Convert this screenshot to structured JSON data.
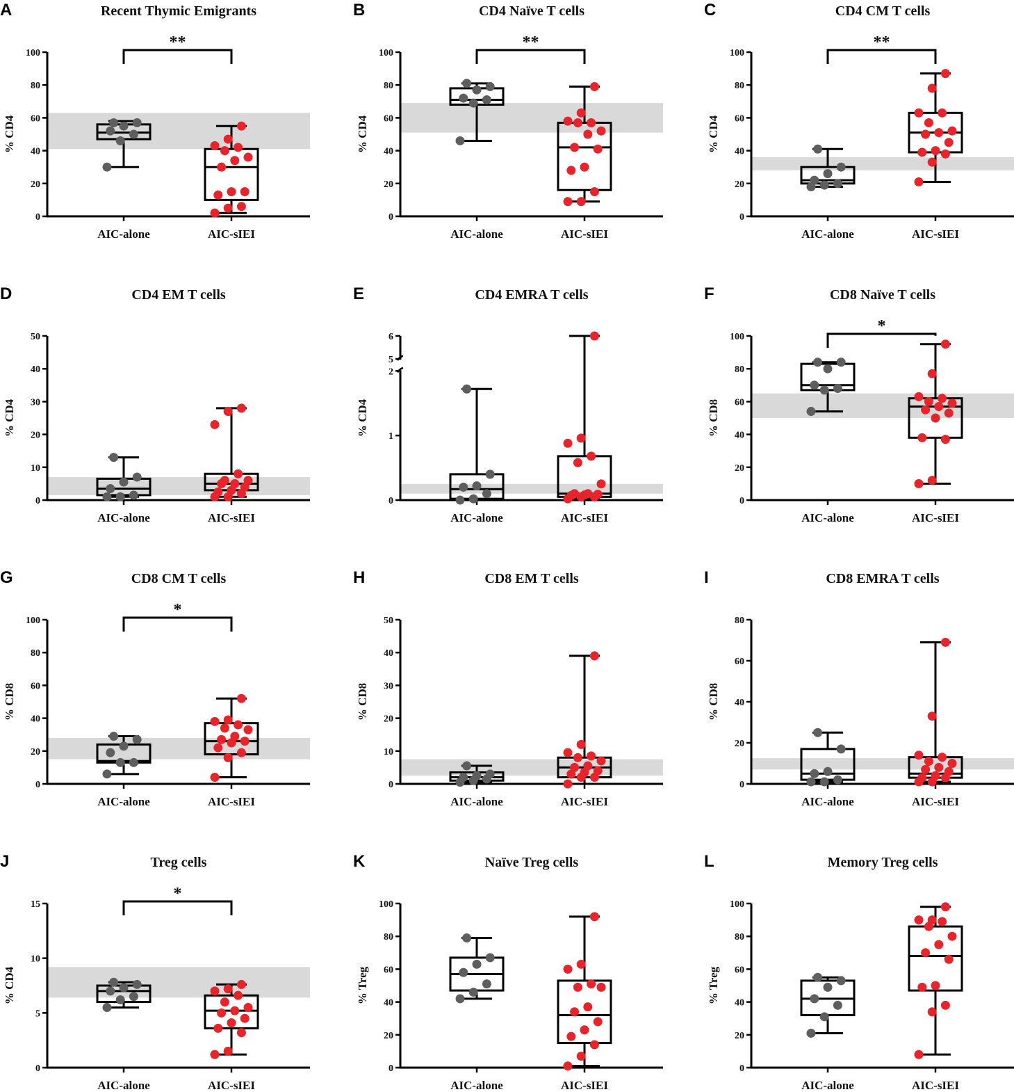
{
  "figure": {
    "categories": [
      "AIC-alone",
      "AIC-sIEI"
    ],
    "colors": {
      "alone": "#5e5e5e",
      "siei": "#e8232a",
      "reference_band": "#d9d9d9",
      "box": "#000000"
    }
  },
  "chart_data": [
    {
      "letter": "A",
      "type": "box",
      "title": "Recent Thymic Emigrants",
      "ylabel": "% CD4",
      "ylim": [
        0,
        100
      ],
      "yticks": [
        0,
        20,
        40,
        60,
        80,
        100
      ],
      "yticklabels": [
        "0",
        "20",
        "40",
        "60",
        "80",
        "100"
      ],
      "reference_band": [
        41,
        63
      ],
      "significance": "**",
      "groups": [
        {
          "name": "AIC-alone",
          "color": "#5e5e5e",
          "min": 30,
          "q1": 47,
          "median": 51,
          "q3": 56,
          "max": 58,
          "points": [
            30,
            46,
            50,
            52,
            55,
            57,
            57
          ]
        },
        {
          "name": "AIC-sIEI",
          "color": "#e8232a",
          "min": 2,
          "q1": 10,
          "median": 30,
          "q3": 41,
          "max": 55,
          "points": [
            2,
            5,
            6,
            13,
            15,
            15,
            30,
            34,
            36,
            40,
            42,
            43,
            47,
            55
          ]
        }
      ]
    },
    {
      "letter": "B",
      "type": "box",
      "title": "CD4 Naïve T cells",
      "ylabel": "% CD4",
      "ylim": [
        0,
        100
      ],
      "yticks": [
        0,
        20,
        40,
        60,
        80,
        100
      ],
      "yticklabels": [
        "0",
        "20",
        "40",
        "60",
        "80",
        "100"
      ],
      "reference_band": [
        51,
        69
      ],
      "significance": "**",
      "groups": [
        {
          "name": "AIC-alone",
          "color": "#5e5e5e",
          "min": 46,
          "q1": 68,
          "median": 71,
          "q3": 78,
          "max": 81,
          "points": [
            46,
            69,
            71,
            72,
            77,
            79,
            81
          ]
        },
        {
          "name": "AIC-sIEI",
          "color": "#e8232a",
          "min": 9,
          "q1": 16,
          "median": 42,
          "q3": 57,
          "max": 79,
          "points": [
            9,
            9,
            15,
            28,
            30,
            41,
            42,
            50,
            52,
            57,
            57,
            58,
            63,
            79
          ]
        }
      ]
    },
    {
      "letter": "C",
      "type": "box",
      "title": "CD4 CM T cells",
      "ylabel": "% CD4",
      "ylim": [
        0,
        100
      ],
      "yticks": [
        0,
        20,
        40,
        60,
        80,
        100
      ],
      "yticklabels": [
        "0",
        "20",
        "40",
        "60",
        "80",
        "100"
      ],
      "reference_band": [
        28,
        36
      ],
      "significance": "**",
      "groups": [
        {
          "name": "AIC-alone",
          "color": "#5e5e5e",
          "min": 18,
          "q1": 20,
          "median": 22,
          "q3": 30,
          "max": 41,
          "points": [
            18,
            19,
            20,
            22,
            26,
            30,
            41
          ]
        },
        {
          "name": "AIC-sIEI",
          "color": "#e8232a",
          "min": 21,
          "q1": 39,
          "median": 51,
          "q3": 63,
          "max": 87,
          "points": [
            21,
            33,
            38,
            39,
            40,
            45,
            50,
            51,
            52,
            57,
            63,
            63,
            78,
            87
          ]
        }
      ]
    },
    {
      "letter": "D",
      "type": "box",
      "title": "CD4 EM T cells",
      "ylabel": "% CD4",
      "ylim": [
        0,
        50
      ],
      "yticks": [
        0,
        10,
        20,
        30,
        40,
        50
      ],
      "yticklabels": [
        "0",
        "10",
        "20",
        "30",
        "40",
        "50"
      ],
      "reference_band": [
        1.5,
        7
      ],
      "significance": "",
      "groups": [
        {
          "name": "AIC-alone",
          "color": "#5e5e5e",
          "min": 1,
          "q1": 1.5,
          "median": 3.5,
          "q3": 6.5,
          "max": 13,
          "points": [
            1,
            1,
            1.5,
            3.5,
            5.5,
            7,
            13
          ]
        },
        {
          "name": "AIC-sIEI",
          "color": "#e8232a",
          "min": 1,
          "q1": 3,
          "median": 5,
          "q3": 8,
          "max": 28,
          "points": [
            1,
            1,
            2,
            2.5,
            3,
            4,
            5,
            5,
            6,
            6,
            8,
            23,
            27,
            28
          ]
        }
      ]
    },
    {
      "letter": "E",
      "type": "box",
      "title": "CD4 EMRA T cells",
      "ylabel": "% CD4",
      "ylim": [
        0,
        6
      ],
      "axis_break": true,
      "yticks": [
        0,
        1,
        2,
        5,
        6
      ],
      "yticklabels": [
        "0",
        "1",
        "2",
        "5",
        "6"
      ],
      "reference_band": [
        0.1,
        0.25
      ],
      "significance": "",
      "groups": [
        {
          "name": "AIC-alone",
          "color": "#5e5e5e",
          "min": 0,
          "q1": 0.02,
          "median": 0.17,
          "q3": 0.4,
          "max": 1.72,
          "points": [
            0,
            0.02,
            0.1,
            0.2,
            0.22,
            0.4,
            1.72
          ]
        },
        {
          "name": "AIC-sIEI",
          "color": "#e8232a",
          "min": 0.02,
          "q1": 0.05,
          "median": 0.1,
          "q3": 0.68,
          "max": 6,
          "points": [
            0.02,
            0.05,
            0.05,
            0.07,
            0.08,
            0.09,
            0.1,
            0.1,
            0.25,
            0.58,
            0.68,
            0.88,
            0.96,
            6
          ]
        }
      ]
    },
    {
      "letter": "F",
      "type": "box",
      "title": "CD8 Naïve T cells",
      "ylabel": "% CD8",
      "ylim": [
        0,
        100
      ],
      "yticks": [
        0,
        20,
        40,
        60,
        80,
        100
      ],
      "yticklabels": [
        "0",
        "20",
        "40",
        "60",
        "80",
        "100"
      ],
      "reference_band": [
        50,
        65
      ],
      "significance": "*",
      "groups": [
        {
          "name": "AIC-alone",
          "color": "#5e5e5e",
          "min": 54,
          "q1": 67,
          "median": 70,
          "q3": 83,
          "max": 84,
          "points": [
            54,
            67,
            68,
            70,
            80,
            84,
            84
          ]
        },
        {
          "name": "AIC-sIEI",
          "color": "#e8232a",
          "min": 10,
          "q1": 38,
          "median": 57,
          "q3": 62,
          "max": 95,
          "points": [
            10,
            12,
            37,
            38,
            50,
            53,
            55,
            57,
            59,
            60,
            62,
            63,
            77,
            95
          ]
        }
      ]
    },
    {
      "letter": "G",
      "type": "box",
      "title": "CD8 CM T cells",
      "ylabel": "% CD8",
      "ylim": [
        0,
        100
      ],
      "yticks": [
        0,
        20,
        40,
        60,
        80,
        100
      ],
      "yticklabels": [
        "0",
        "20",
        "40",
        "60",
        "80",
        "100"
      ],
      "reference_band": [
        15,
        28
      ],
      "significance": "*",
      "groups": [
        {
          "name": "AIC-alone",
          "color": "#5e5e5e",
          "min": 6,
          "q1": 13,
          "median": 14,
          "q3": 24,
          "max": 29,
          "points": [
            6,
            13,
            13,
            19,
            23,
            27,
            29
          ]
        },
        {
          "name": "AIC-sIEI",
          "color": "#e8232a",
          "min": 4,
          "q1": 18,
          "median": 26,
          "q3": 37,
          "max": 52,
          "points": [
            4,
            16,
            19,
            22,
            25,
            26,
            27,
            29,
            33,
            34,
            36,
            38,
            39,
            52
          ]
        }
      ]
    },
    {
      "letter": "H",
      "type": "box",
      "title": "CD8 EM T cells",
      "ylabel": "% CD8",
      "ylim": [
        0,
        50
      ],
      "yticks": [
        0,
        10,
        20,
        30,
        40,
        50
      ],
      "yticklabels": [
        "0",
        "10",
        "20",
        "30",
        "40",
        "50"
      ],
      "reference_band": [
        2.5,
        7.5
      ],
      "significance": "",
      "groups": [
        {
          "name": "AIC-alone",
          "color": "#5e5e5e",
          "min": 0.5,
          "q1": 1,
          "median": 2,
          "q3": 3.5,
          "max": 5.5,
          "points": [
            0.5,
            1,
            1.5,
            2,
            2.5,
            3,
            5.5
          ]
        },
        {
          "name": "AIC-sIEI",
          "color": "#e8232a",
          "min": 0,
          "q1": 2,
          "median": 5,
          "q3": 8,
          "max": 39,
          "points": [
            0,
            2,
            2,
            3,
            3.5,
            4,
            5,
            5.5,
            7,
            8,
            8.5,
            9.5,
            12,
            39
          ]
        }
      ]
    },
    {
      "letter": "I",
      "type": "box",
      "title": "CD8 EMRA T cells",
      "ylabel": "% CD8",
      "ylim": [
        0,
        80
      ],
      "yticks": [
        0,
        20,
        40,
        60,
        80
      ],
      "yticklabels": [
        "0",
        "20",
        "40",
        "60",
        "80"
      ],
      "reference_band": [
        7,
        12.5
      ],
      "significance": "",
      "groups": [
        {
          "name": "AIC-alone",
          "color": "#5e5e5e",
          "min": 1,
          "q1": 2,
          "median": 5,
          "q3": 17,
          "max": 25,
          "points": [
            1,
            1,
            2,
            5,
            6,
            17,
            25
          ]
        },
        {
          "name": "AIC-sIEI",
          "color": "#e8232a",
          "min": 1,
          "q1": 3,
          "median": 5,
          "q3": 13,
          "max": 69,
          "points": [
            1,
            1,
            3,
            3,
            4,
            6,
            7,
            8,
            10,
            11,
            13,
            14,
            33,
            69
          ]
        }
      ]
    },
    {
      "letter": "J",
      "type": "box",
      "title": "Treg cells",
      "ylabel": "% CD4",
      "ylim": [
        0,
        15
      ],
      "yticks": [
        0,
        5,
        10,
        15
      ],
      "yticklabels": [
        "0",
        "5",
        "10",
        "15"
      ],
      "reference_band": [
        6.4,
        9.2
      ],
      "significance": "*",
      "groups": [
        {
          "name": "AIC-alone",
          "color": "#5e5e5e",
          "min": 5.5,
          "q1": 6,
          "median": 7,
          "q3": 7.5,
          "max": 7.8,
          "points": [
            5.5,
            6.2,
            6.5,
            7,
            7.3,
            7.6,
            7.8
          ]
        },
        {
          "name": "AIC-sIEI",
          "color": "#e8232a",
          "min": 1.2,
          "q1": 3.6,
          "median": 5.2,
          "q3": 6.6,
          "max": 7.6,
          "points": [
            1.2,
            1.5,
            3.2,
            3.6,
            4.1,
            4.5,
            5,
            5.2,
            5.5,
            6,
            6.6,
            7,
            7.2,
            7.6
          ]
        }
      ]
    },
    {
      "letter": "K",
      "type": "box",
      "title": "Naïve Treg cells",
      "ylabel": "% Treg",
      "ylim": [
        0,
        100
      ],
      "yticks": [
        0,
        20,
        40,
        60,
        80,
        100
      ],
      "yticklabels": [
        "0",
        "20",
        "40",
        "60",
        "80",
        "100"
      ],
      "reference_band": null,
      "significance": "",
      "groups": [
        {
          "name": "AIC-alone",
          "color": "#5e5e5e",
          "min": 42,
          "q1": 47,
          "median": 57,
          "q3": 67,
          "max": 79,
          "points": [
            42,
            46,
            51,
            58,
            63,
            67,
            79
          ]
        },
        {
          "name": "AIC-sIEI",
          "color": "#e8232a",
          "min": 1,
          "q1": 15,
          "median": 32,
          "q3": 53,
          "max": 92,
          "points": [
            1,
            7,
            14,
            19,
            23,
            28,
            34,
            37,
            49,
            49,
            51,
            60,
            63,
            92
          ]
        }
      ]
    },
    {
      "letter": "L",
      "type": "box",
      "title": "Memory Treg cells",
      "ylabel": "% Treg",
      "ylim": [
        0,
        100
      ],
      "yticks": [
        0,
        20,
        40,
        60,
        80,
        100
      ],
      "yticklabels": [
        "0",
        "20",
        "40",
        "60",
        "80",
        "100"
      ],
      "reference_band": null,
      "significance": "",
      "groups": [
        {
          "name": "AIC-alone",
          "color": "#5e5e5e",
          "min": 21,
          "q1": 32,
          "median": 42,
          "q3": 53,
          "max": 55,
          "points": [
            21,
            31,
            38,
            42,
            49,
            53,
            55
          ]
        },
        {
          "name": "AIC-sIEI",
          "color": "#e8232a",
          "min": 8,
          "q1": 47,
          "median": 68,
          "q3": 86,
          "max": 98,
          "points": [
            8,
            34,
            38,
            49,
            50,
            66,
            70,
            75,
            80,
            86,
            89,
            90,
            90,
            98
          ]
        }
      ]
    }
  ]
}
